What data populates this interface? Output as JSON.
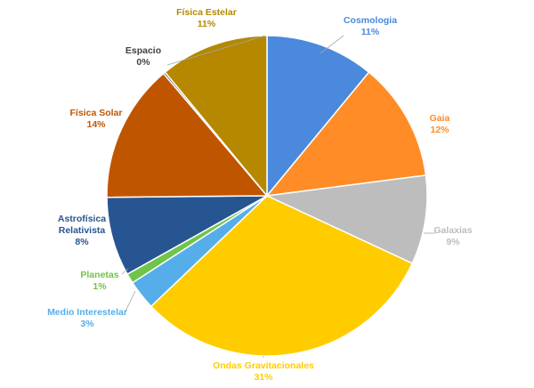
{
  "chart_data": {
    "type": "pie",
    "title": "",
    "start": "top, clockwise",
    "slices": [
      {
        "name": "Cosmologia",
        "label": "11%",
        "value": 11,
        "color": "#4a89dc"
      },
      {
        "name": "Gaia",
        "label": "12%",
        "value": 12,
        "color": "#ff8c26"
      },
      {
        "name": "Galaxias",
        "label": "9%",
        "value": 9,
        "color": "#bdbdbd"
      },
      {
        "name": "Ondas Gravitacionales",
        "label": "31%",
        "value": 31,
        "color": "#ffcc00"
      },
      {
        "name": "Medio Interestelar",
        "label": "3%",
        "value": 3,
        "color": "#55aeea"
      },
      {
        "name": "Planetas",
        "label": "1%",
        "value": 1,
        "color": "#70c44a"
      },
      {
        "name": "Astrofísica Relativista",
        "label": "8%",
        "value": 8,
        "color": "#275592"
      },
      {
        "name": "Física Solar",
        "label": "14%",
        "value": 14,
        "color": "#c05500"
      },
      {
        "name": "Espacio",
        "label": "0%",
        "value": 0.2,
        "color": "#404040"
      },
      {
        "name": "Física Estelar",
        "label": "11%",
        "value": 11,
        "color": "#b58800"
      }
    ]
  }
}
